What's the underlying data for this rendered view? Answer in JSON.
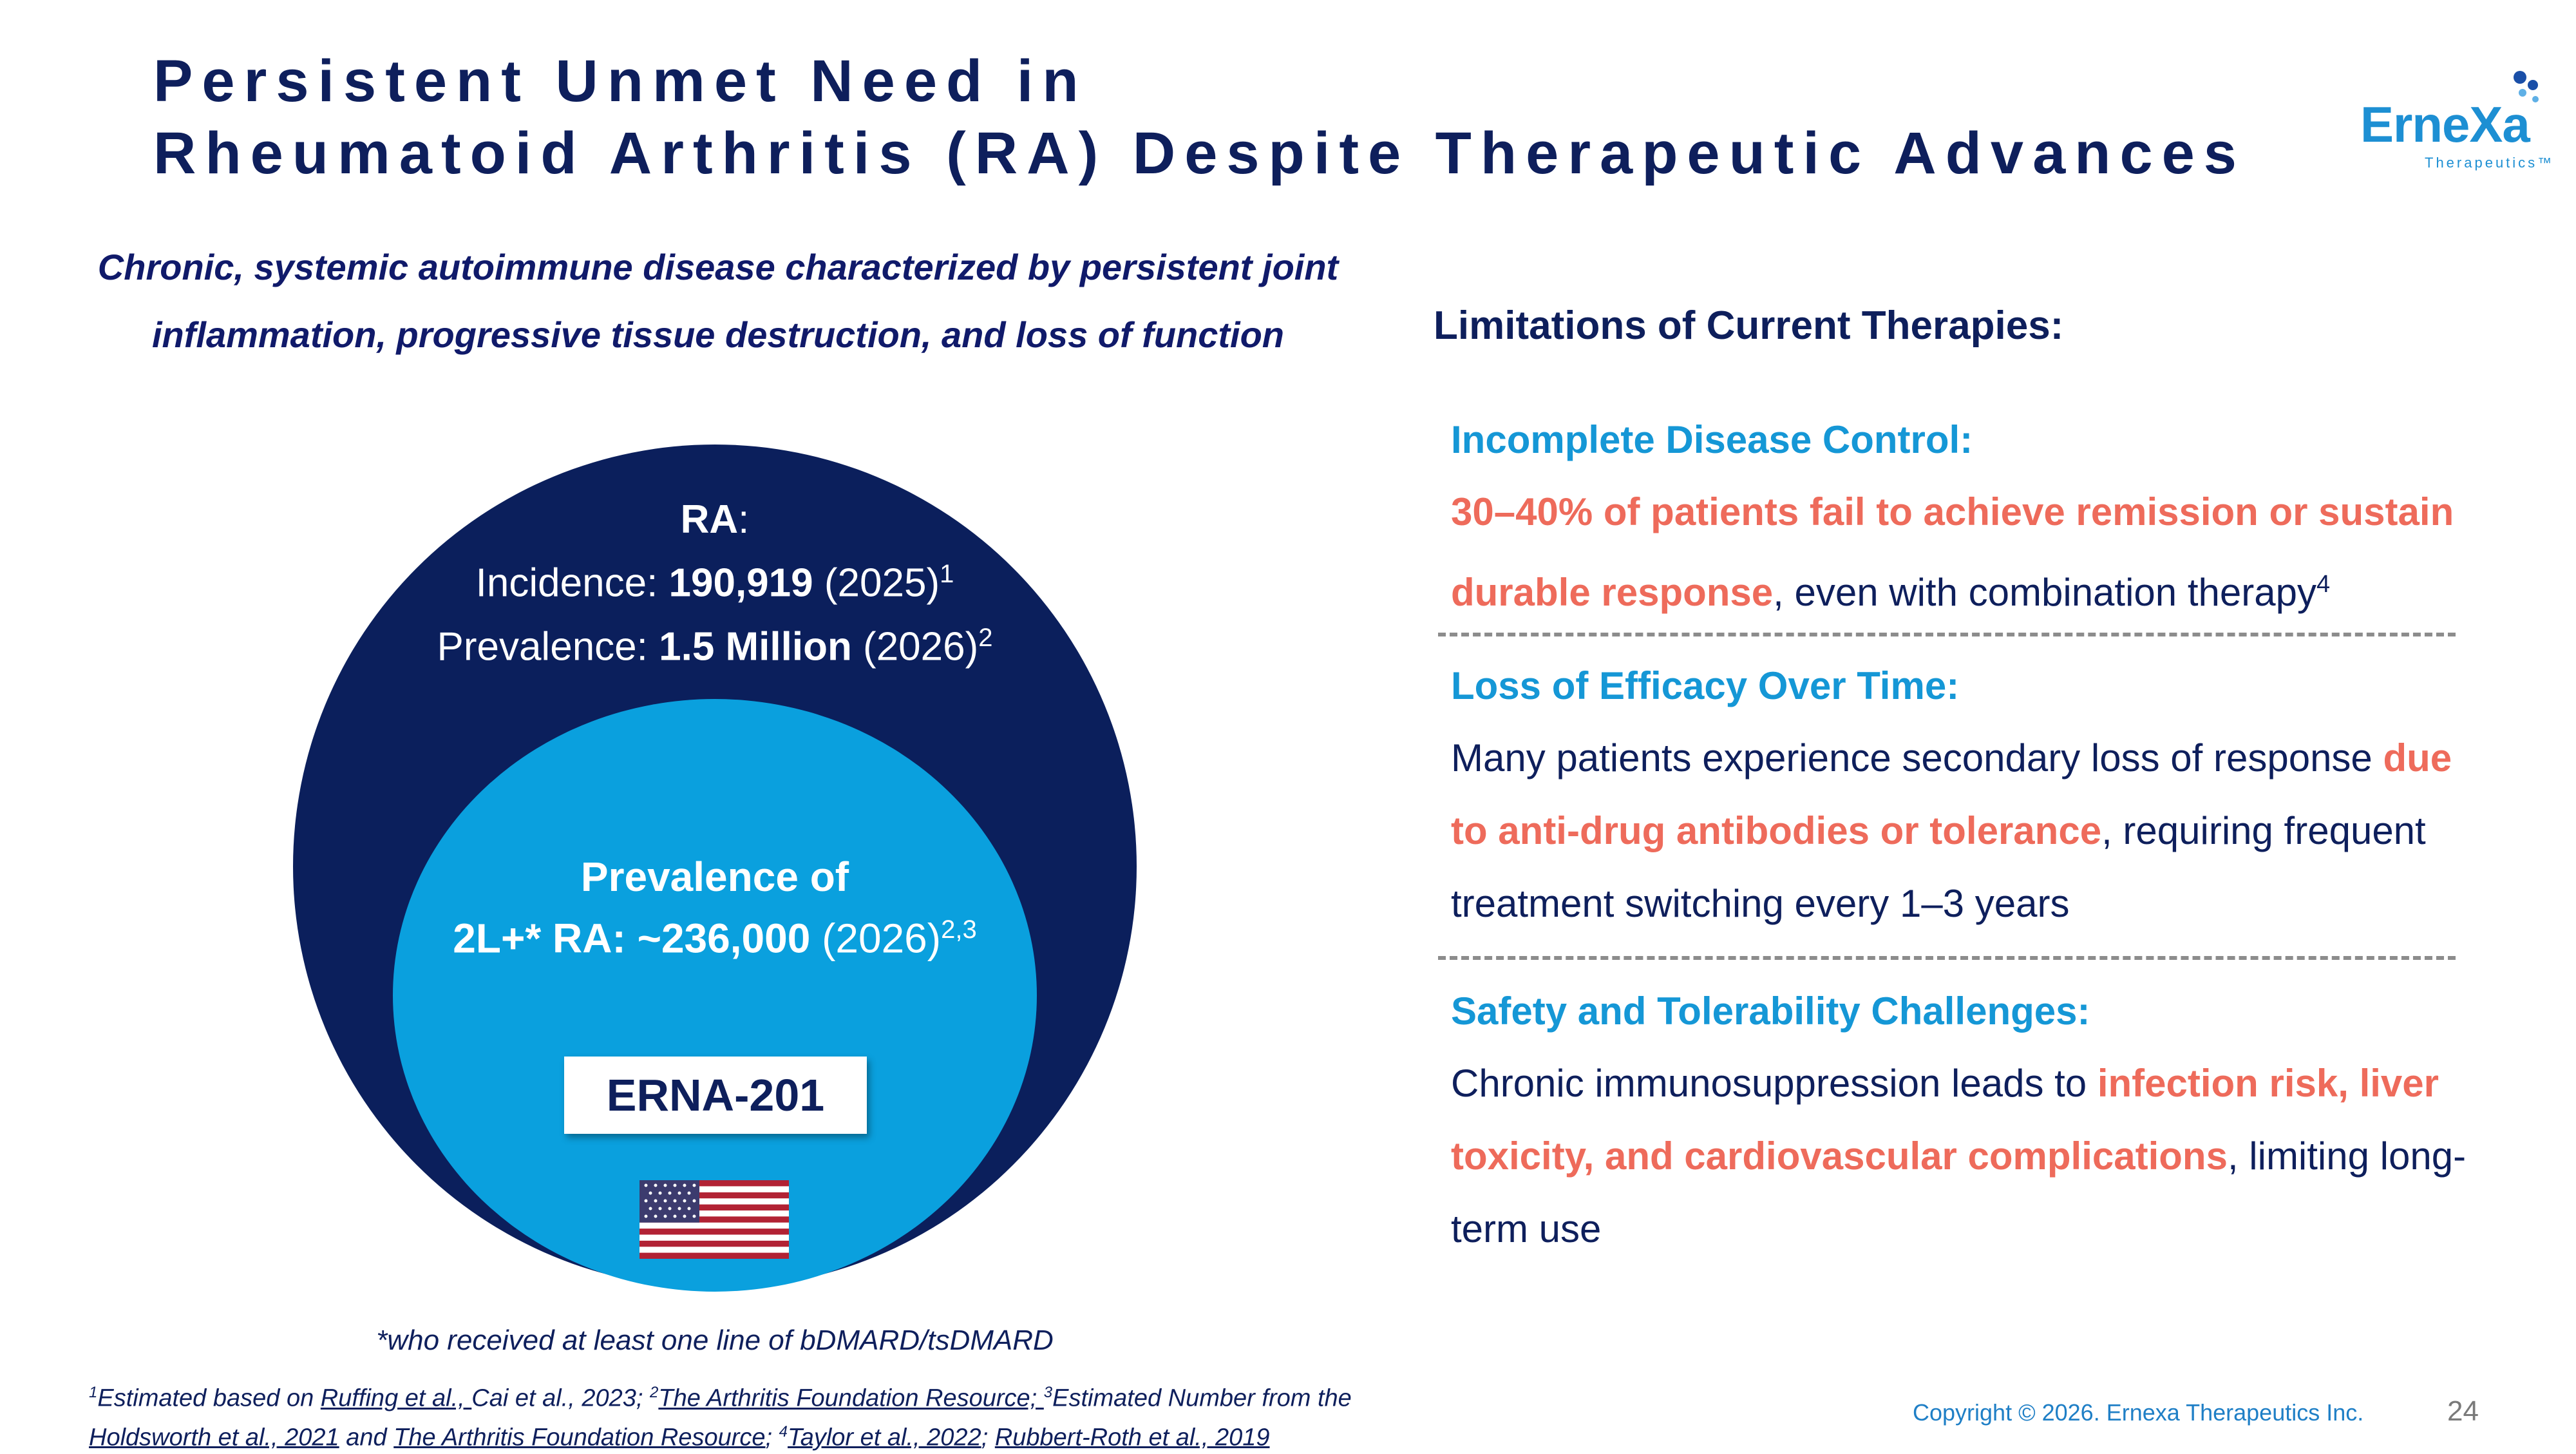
{
  "title": {
    "line1": "Persistent Unmet Need in",
    "line2": "Rheumatoid Arthritis (RA) Despite Therapeutic Advances"
  },
  "logo": {
    "name": "ErneXa",
    "tagline": "Therapeutics™"
  },
  "subtitle": "Chronic, systemic autoimmune disease characterized by persistent joint inflammation, progressive tissue destruction, and loss of function",
  "ra": {
    "label": "RA",
    "colon": ":",
    "incidence_label": "Incidence: ",
    "incidence_value": "190,919",
    "incidence_year": " (2025)",
    "incidence_ref": "1",
    "prevalence_label": "Prevalence: ",
    "prevalence_value": "1.5 Million",
    "prevalence_year": " (2026)",
    "prevalence_ref": "2"
  },
  "subpopulation": {
    "line1": "Prevalence of",
    "label": "2L+* RA:  ",
    "value": "~236,000",
    "year": " (2026)",
    "ref": "2,3"
  },
  "product": "ERNA-201",
  "flag_icon": "us-flag-icon",
  "footnote_star": "*who received at least one line of bDMARD/tsDMARD",
  "references": {
    "r1_sup": "1",
    "r1_text": "Estimated based on ",
    "r1_link1": "Ruffing et al., ",
    "r1_text2": "Cai et al., 2023; ",
    "r2_sup": "2",
    "r2_link": "The Arthritis Foundation Resource; ",
    "r3_sup": "3",
    "r3_text": "Estimated Number from the ",
    "r3_link1": "Holdsworth et al., 2021",
    "r3_text2": " and ",
    "r3_link2": "The Arthritis Foundation Resource",
    "r3_text3": "; ",
    "r4_sup": "4",
    "r4_link1": "Taylor et al., 2022",
    "r4_text": "; ",
    "r4_link2": "Rubbert-Roth et al., 2019"
  },
  "copyright": "Copyright © 2026. Ernexa Therapeutics Inc.",
  "page_number": "24",
  "limitations": {
    "title": "Limitations of Current Therapies:",
    "sections": [
      {
        "heading": "Incomplete Disease Control:",
        "highlight": "30–40% of patients fail to achieve remission or sustain durable response",
        "text": ", even with combination therapy",
        "ref": "4"
      },
      {
        "heading": "Loss of Efficacy Over Time:",
        "text1": "Many patients experience secondary loss of response ",
        "highlight": "due to anti-drug antibodies or tolerance",
        "text2": ", requiring frequent treatment switching every 1–3 years"
      },
      {
        "heading": "Safety and Tolerability Challenges:",
        "text1": "Chronic immunosuppression leads to ",
        "highlight": "infection risk, liver toxicity, and cardiovascular complications",
        "text2": ", limiting long-term use"
      }
    ]
  },
  "colors": {
    "navy": "#0b1f5c",
    "light_blue": "#0aa0de",
    "accent_red": "#ee6b5b",
    "heading_blue": "#1597d6"
  }
}
